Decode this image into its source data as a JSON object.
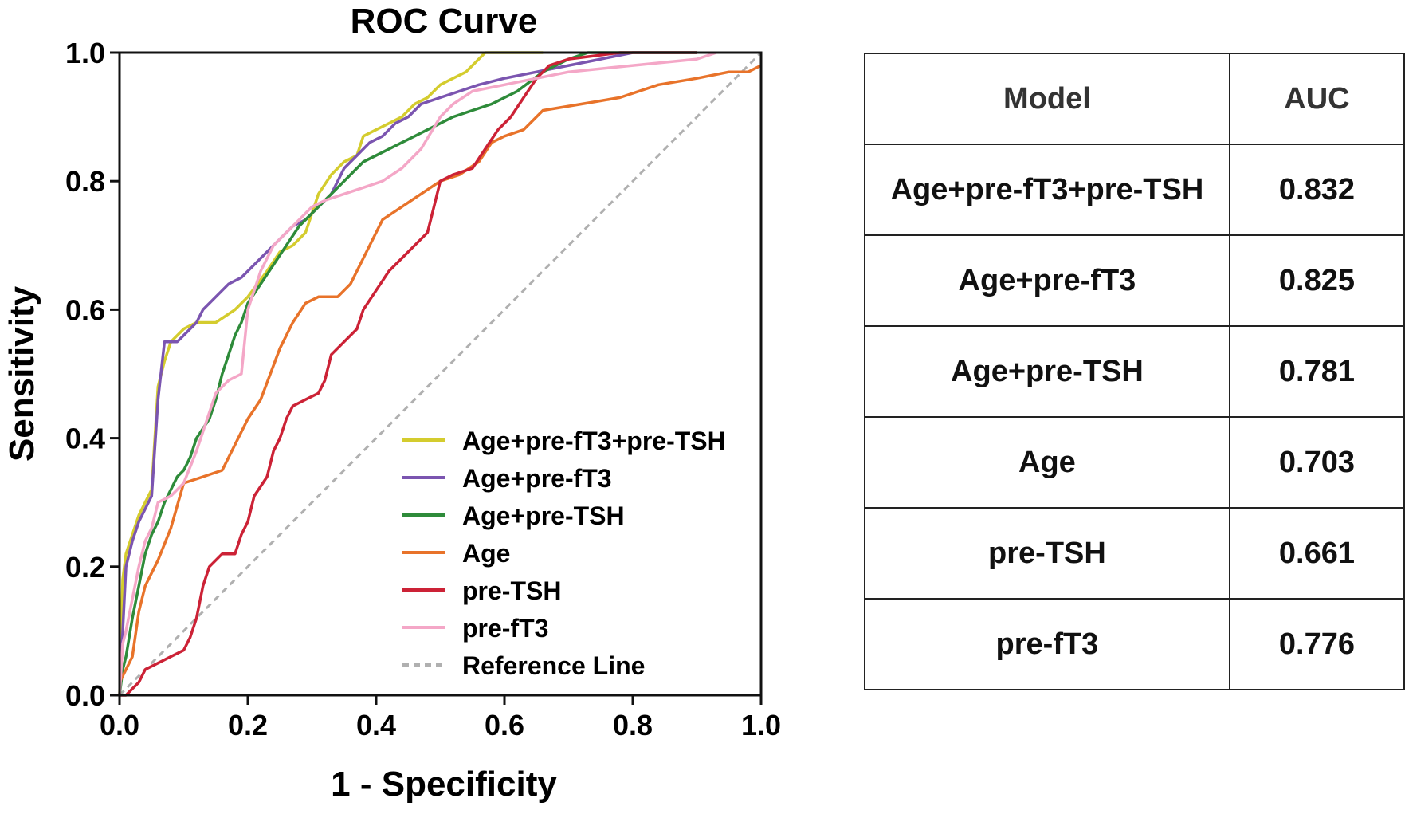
{
  "chart_data": {
    "type": "line",
    "title": "ROC Curve",
    "xlabel": "1 - Specificity",
    "ylabel": "Sensitivity",
    "xlim": [
      0,
      1
    ],
    "ylim": [
      0,
      1
    ],
    "x_ticks": [
      "0.0",
      "0.2",
      "0.4",
      "0.6",
      "0.8",
      "1.0"
    ],
    "y_ticks": [
      "0.0",
      "0.2",
      "0.4",
      "0.6",
      "0.8",
      "1.0"
    ],
    "legend_position": "bottom-right",
    "series": [
      {
        "name": "Age+pre-fT3+pre-TSH",
        "color": "#d4cc2e",
        "points": [
          [
            0,
            0
          ],
          [
            0.005,
            0.18
          ],
          [
            0.01,
            0.22
          ],
          [
            0.02,
            0.25
          ],
          [
            0.03,
            0.28
          ],
          [
            0.04,
            0.3
          ],
          [
            0.05,
            0.32
          ],
          [
            0.06,
            0.48
          ],
          [
            0.07,
            0.52
          ],
          [
            0.08,
            0.55
          ],
          [
            0.1,
            0.57
          ],
          [
            0.12,
            0.58
          ],
          [
            0.15,
            0.58
          ],
          [
            0.18,
            0.6
          ],
          [
            0.2,
            0.62
          ],
          [
            0.23,
            0.66
          ],
          [
            0.25,
            0.69
          ],
          [
            0.27,
            0.7
          ],
          [
            0.29,
            0.72
          ],
          [
            0.3,
            0.75
          ],
          [
            0.31,
            0.78
          ],
          [
            0.33,
            0.81
          ],
          [
            0.35,
            0.83
          ],
          [
            0.37,
            0.84
          ],
          [
            0.38,
            0.87
          ],
          [
            0.4,
            0.88
          ],
          [
            0.42,
            0.89
          ],
          [
            0.44,
            0.9
          ],
          [
            0.46,
            0.92
          ],
          [
            0.48,
            0.93
          ],
          [
            0.5,
            0.95
          ],
          [
            0.52,
            0.96
          ],
          [
            0.54,
            0.97
          ],
          [
            0.55,
            0.98
          ],
          [
            0.57,
            1.0
          ],
          [
            0.66,
            1.0
          ]
        ]
      },
      {
        "name": "Age+pre-fT3",
        "color": "#7b55b0",
        "points": [
          [
            0,
            0
          ],
          [
            0.005,
            0.1
          ],
          [
            0.01,
            0.2
          ],
          [
            0.02,
            0.24
          ],
          [
            0.03,
            0.27
          ],
          [
            0.04,
            0.29
          ],
          [
            0.05,
            0.31
          ],
          [
            0.06,
            0.46
          ],
          [
            0.07,
            0.55
          ],
          [
            0.09,
            0.55
          ],
          [
            0.1,
            0.56
          ],
          [
            0.12,
            0.58
          ],
          [
            0.13,
            0.6
          ],
          [
            0.15,
            0.62
          ],
          [
            0.17,
            0.64
          ],
          [
            0.19,
            0.65
          ],
          [
            0.21,
            0.67
          ],
          [
            0.23,
            0.69
          ],
          [
            0.25,
            0.71
          ],
          [
            0.27,
            0.73
          ],
          [
            0.29,
            0.74
          ],
          [
            0.31,
            0.76
          ],
          [
            0.33,
            0.78
          ],
          [
            0.35,
            0.82
          ],
          [
            0.37,
            0.84
          ],
          [
            0.39,
            0.86
          ],
          [
            0.41,
            0.87
          ],
          [
            0.43,
            0.89
          ],
          [
            0.45,
            0.9
          ],
          [
            0.47,
            0.92
          ],
          [
            0.5,
            0.93
          ],
          [
            0.53,
            0.94
          ],
          [
            0.56,
            0.95
          ],
          [
            0.6,
            0.96
          ],
          [
            0.65,
            0.97
          ],
          [
            0.7,
            0.98
          ],
          [
            0.75,
            0.99
          ],
          [
            0.8,
            1.0
          ],
          [
            0.9,
            1.0
          ]
        ]
      },
      {
        "name": "Age+pre-TSH",
        "color": "#2e8b3a",
        "points": [
          [
            0,
            0
          ],
          [
            0.005,
            0.04
          ],
          [
            0.01,
            0.06
          ],
          [
            0.02,
            0.12
          ],
          [
            0.03,
            0.17
          ],
          [
            0.04,
            0.22
          ],
          [
            0.05,
            0.25
          ],
          [
            0.06,
            0.27
          ],
          [
            0.07,
            0.3
          ],
          [
            0.08,
            0.32
          ],
          [
            0.09,
            0.34
          ],
          [
            0.1,
            0.35
          ],
          [
            0.11,
            0.37
          ],
          [
            0.12,
            0.4
          ],
          [
            0.14,
            0.43
          ],
          [
            0.15,
            0.46
          ],
          [
            0.16,
            0.5
          ],
          [
            0.17,
            0.53
          ],
          [
            0.18,
            0.56
          ],
          [
            0.19,
            0.58
          ],
          [
            0.2,
            0.61
          ],
          [
            0.22,
            0.64
          ],
          [
            0.24,
            0.67
          ],
          [
            0.26,
            0.7
          ],
          [
            0.28,
            0.73
          ],
          [
            0.3,
            0.75
          ],
          [
            0.32,
            0.77
          ],
          [
            0.34,
            0.79
          ],
          [
            0.36,
            0.81
          ],
          [
            0.38,
            0.83
          ],
          [
            0.4,
            0.84
          ],
          [
            0.42,
            0.85
          ],
          [
            0.44,
            0.86
          ],
          [
            0.46,
            0.87
          ],
          [
            0.48,
            0.88
          ],
          [
            0.5,
            0.89
          ],
          [
            0.52,
            0.9
          ],
          [
            0.55,
            0.91
          ],
          [
            0.58,
            0.92
          ],
          [
            0.62,
            0.94
          ],
          [
            0.66,
            0.97
          ],
          [
            0.7,
            0.99
          ],
          [
            0.73,
            1.0
          ],
          [
            0.9,
            1.0
          ]
        ]
      },
      {
        "name": "Age",
        "color": "#e8732a",
        "points": [
          [
            0,
            0.02
          ],
          [
            0.01,
            0.04
          ],
          [
            0.02,
            0.06
          ],
          [
            0.03,
            0.13
          ],
          [
            0.04,
            0.17
          ],
          [
            0.06,
            0.21
          ],
          [
            0.08,
            0.26
          ],
          [
            0.1,
            0.33
          ],
          [
            0.13,
            0.34
          ],
          [
            0.16,
            0.35
          ],
          [
            0.18,
            0.39
          ],
          [
            0.2,
            0.43
          ],
          [
            0.22,
            0.46
          ],
          [
            0.25,
            0.54
          ],
          [
            0.27,
            0.58
          ],
          [
            0.29,
            0.61
          ],
          [
            0.31,
            0.62
          ],
          [
            0.34,
            0.62
          ],
          [
            0.36,
            0.64
          ],
          [
            0.38,
            0.68
          ],
          [
            0.41,
            0.74
          ],
          [
            0.44,
            0.76
          ],
          [
            0.47,
            0.78
          ],
          [
            0.5,
            0.8
          ],
          [
            0.53,
            0.81
          ],
          [
            0.56,
            0.83
          ],
          [
            0.58,
            0.86
          ],
          [
            0.6,
            0.87
          ],
          [
            0.63,
            0.88
          ],
          [
            0.66,
            0.91
          ],
          [
            0.72,
            0.92
          ],
          [
            0.78,
            0.93
          ],
          [
            0.84,
            0.95
          ],
          [
            0.9,
            0.96
          ],
          [
            0.95,
            0.97
          ],
          [
            0.98,
            0.97
          ],
          [
            1.0,
            0.98
          ]
        ]
      },
      {
        "name": "pre-TSH",
        "color": "#cc2236",
        "points": [
          [
            0,
            0
          ],
          [
            0.01,
            0.0
          ],
          [
            0.02,
            0.01
          ],
          [
            0.03,
            0.02
          ],
          [
            0.04,
            0.04
          ],
          [
            0.06,
            0.05
          ],
          [
            0.08,
            0.06
          ],
          [
            0.1,
            0.07
          ],
          [
            0.11,
            0.09
          ],
          [
            0.12,
            0.12
          ],
          [
            0.13,
            0.17
          ],
          [
            0.14,
            0.2
          ],
          [
            0.16,
            0.22
          ],
          [
            0.18,
            0.22
          ],
          [
            0.19,
            0.25
          ],
          [
            0.2,
            0.27
          ],
          [
            0.21,
            0.31
          ],
          [
            0.23,
            0.34
          ],
          [
            0.24,
            0.38
          ],
          [
            0.25,
            0.4
          ],
          [
            0.26,
            0.43
          ],
          [
            0.27,
            0.45
          ],
          [
            0.29,
            0.46
          ],
          [
            0.31,
            0.47
          ],
          [
            0.32,
            0.49
          ],
          [
            0.33,
            0.53
          ],
          [
            0.35,
            0.55
          ],
          [
            0.37,
            0.57
          ],
          [
            0.38,
            0.6
          ],
          [
            0.4,
            0.63
          ],
          [
            0.42,
            0.66
          ],
          [
            0.44,
            0.68
          ],
          [
            0.46,
            0.7
          ],
          [
            0.48,
            0.72
          ],
          [
            0.49,
            0.76
          ],
          [
            0.5,
            0.8
          ],
          [
            0.52,
            0.81
          ],
          [
            0.55,
            0.82
          ],
          [
            0.57,
            0.85
          ],
          [
            0.59,
            0.88
          ],
          [
            0.61,
            0.9
          ],
          [
            0.63,
            0.93
          ],
          [
            0.65,
            0.96
          ],
          [
            0.67,
            0.98
          ],
          [
            0.7,
            0.99
          ],
          [
            0.78,
            1.0
          ],
          [
            0.9,
            1.0
          ]
        ]
      },
      {
        "name": "pre-fT3",
        "color": "#f4a7c7",
        "points": [
          [
            0,
            0
          ],
          [
            0.005,
            0.08
          ],
          [
            0.01,
            0.1
          ],
          [
            0.02,
            0.15
          ],
          [
            0.03,
            0.2
          ],
          [
            0.04,
            0.24
          ],
          [
            0.05,
            0.26
          ],
          [
            0.06,
            0.3
          ],
          [
            0.08,
            0.31
          ],
          [
            0.1,
            0.33
          ],
          [
            0.12,
            0.38
          ],
          [
            0.14,
            0.44
          ],
          [
            0.15,
            0.47
          ],
          [
            0.17,
            0.49
          ],
          [
            0.19,
            0.5
          ],
          [
            0.2,
            0.6
          ],
          [
            0.21,
            0.63
          ],
          [
            0.22,
            0.66
          ],
          [
            0.24,
            0.7
          ],
          [
            0.26,
            0.72
          ],
          [
            0.28,
            0.74
          ],
          [
            0.3,
            0.76
          ],
          [
            0.32,
            0.77
          ],
          [
            0.35,
            0.78
          ],
          [
            0.38,
            0.79
          ],
          [
            0.41,
            0.8
          ],
          [
            0.44,
            0.82
          ],
          [
            0.47,
            0.85
          ],
          [
            0.5,
            0.9
          ],
          [
            0.52,
            0.92
          ],
          [
            0.55,
            0.94
          ],
          [
            0.6,
            0.95
          ],
          [
            0.65,
            0.96
          ],
          [
            0.7,
            0.97
          ],
          [
            0.8,
            0.98
          ],
          [
            0.9,
            0.99
          ],
          [
            0.93,
            1.0
          ]
        ]
      },
      {
        "name": "Reference Line",
        "color": "#b0b0b0",
        "dashed": true,
        "points": [
          [
            0,
            0
          ],
          [
            1,
            1
          ]
        ]
      }
    ]
  },
  "table": {
    "headers": [
      "Model",
      "AUC"
    ],
    "rows": [
      {
        "model": "Age+pre-fT3+pre-TSH",
        "auc": "0.832"
      },
      {
        "model": "Age+pre-fT3",
        "auc": "0.825"
      },
      {
        "model": "Age+pre-TSH",
        "auc": "0.781"
      },
      {
        "model": "Age",
        "auc": "0.703"
      },
      {
        "model": "pre-TSH",
        "auc": "0.661"
      },
      {
        "model": "pre-fT3",
        "auc": "0.776"
      }
    ]
  }
}
